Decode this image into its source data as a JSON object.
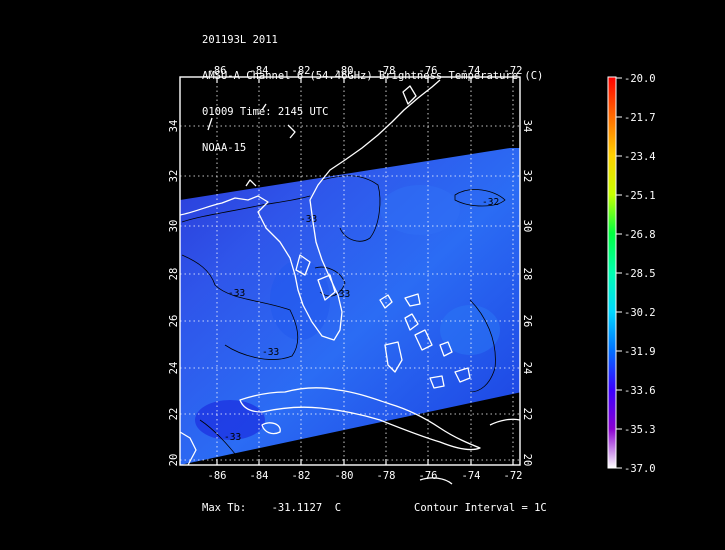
{
  "header": {
    "line1": "201193L 2011",
    "line2": "AMSU-A Channel 6 (54.46GHz) Brightness Temperature (C)",
    "line3": "01009 Time: 2145 UTC",
    "line4": "NOAA-15"
  },
  "axes": {
    "lon_ticks": [
      "-86",
      "-84",
      "-82",
      "-80",
      "-78",
      "-76",
      "-74",
      "-72"
    ],
    "lat_ticks": [
      "20",
      "22",
      "24",
      "26",
      "28",
      "30",
      "32",
      "34"
    ]
  },
  "contours": {
    "labels": [
      "-32",
      "-33",
      "-33",
      "-33",
      "-33",
      "-33"
    ]
  },
  "colorbar": {
    "labels": [
      "-20.0",
      "-21.7",
      "-23.4",
      "-25.1",
      "-26.8",
      "-28.5",
      "-30.2",
      "-31.9",
      "-33.6",
      "-35.3",
      "-37.0"
    ],
    "colors": [
      "#ff0000",
      "#ff6a00",
      "#ffd000",
      "#c8ff00",
      "#00ff40",
      "#00ffb0",
      "#00d8ff",
      "#0070ff",
      "#3a00ff",
      "#8a00d0",
      "#ffffff"
    ]
  },
  "footer": {
    "max_label": "Max Tb:",
    "max_value": "-31.1127",
    "max_unit": "C",
    "contour_interval": "Contour Interval = 1C"
  }
}
